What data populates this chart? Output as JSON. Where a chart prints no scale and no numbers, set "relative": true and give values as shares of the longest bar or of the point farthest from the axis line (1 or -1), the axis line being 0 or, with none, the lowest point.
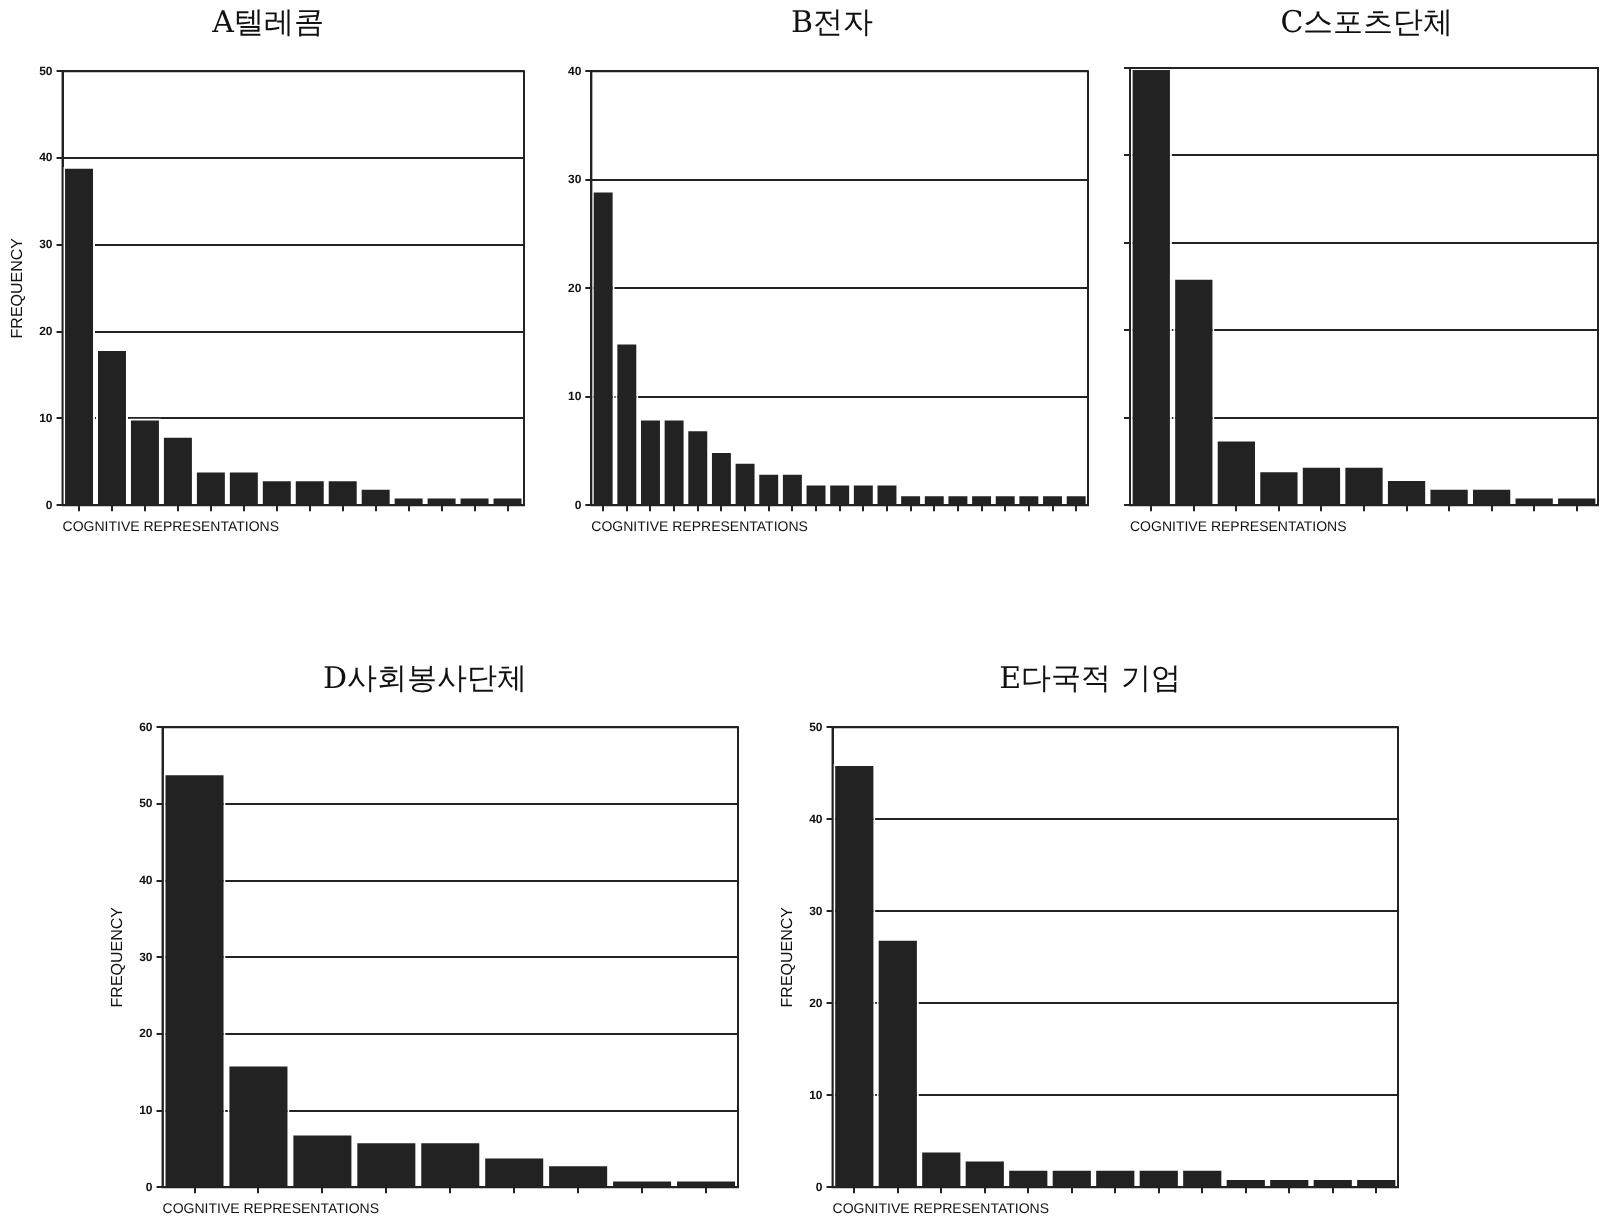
{
  "chart_data": [
    {
      "type": "bar",
      "title": "A텔레콤",
      "xlabel": "COGNITIVE REPRESENTATIONS",
      "ylabel": "FREQUENCY",
      "categories": [
        null,
        null,
        null,
        null,
        null,
        null,
        null,
        null,
        null,
        null,
        null,
        null,
        null,
        null
      ],
      "values": [
        39,
        18,
        10,
        8,
        4,
        4,
        3,
        3,
        3,
        2,
        1,
        1,
        1,
        1
      ],
      "color": "#222222",
      "ylim": [
        0,
        50
      ],
      "yticks": [
        0,
        10,
        20,
        30,
        40,
        50
      ],
      "grid": "y",
      "tick_labels": "y"
    },
    {
      "type": "bar",
      "title": "B전자",
      "xlabel": "COGNITIVE REPRESENTATIONS",
      "categories": [
        null,
        null,
        null,
        null,
        null,
        null,
        null,
        null,
        null,
        null,
        null,
        null,
        null,
        null,
        null,
        null,
        null,
        null,
        null,
        null,
        null
      ],
      "values": [
        29,
        15,
        8,
        8,
        7,
        5,
        4,
        3,
        3,
        2,
        2,
        2,
        2,
        1,
        1,
        1,
        1,
        1,
        1,
        1,
        1
      ],
      "color": "#222222",
      "ylim": [
        0,
        40
      ],
      "yticks": [
        0,
        10,
        20,
        30,
        40
      ],
      "grid": "y",
      "tick_labels": "y"
    },
    {
      "type": "bar",
      "title": "C스포츠단체",
      "xlabel": "COGNITIVE REPRESENTATIONS",
      "relative": true,
      "categories": [
        null,
        null,
        null,
        null,
        null,
        null,
        null,
        null,
        null,
        null,
        null
      ],
      "values": [
        1,
        0.52,
        0.15,
        0.08,
        0.09,
        0.09,
        0.06,
        0.04,
        0.04,
        0.02,
        0.02
      ],
      "color": "#222222",
      "grid": "y",
      "tick_labels": false
    },
    {
      "type": "bar",
      "title": "D사회봉사단체",
      "xlabel": "COGNITIVE REPRESENTATIONS",
      "ylabel": "FREQUENCY",
      "categories": [
        null,
        null,
        null,
        null,
        null,
        null,
        null,
        null,
        null
      ],
      "values": [
        54,
        16,
        7,
        6,
        6,
        4,
        3,
        1,
        1
      ],
      "color": "#222222",
      "ylim": [
        0,
        60
      ],
      "yticks": [
        0,
        10,
        20,
        30,
        40,
        50,
        60
      ],
      "grid": "y",
      "tick_labels": "y"
    },
    {
      "type": "bar",
      "title": "E다국적 기업",
      "xlabel": "COGNITIVE REPRESENTATIONS",
      "ylabel": "FREQUENCY",
      "categories": [
        null,
        null,
        null,
        null,
        null,
        null,
        null,
        null,
        null,
        null,
        null,
        null,
        null
      ],
      "values": [
        46,
        27,
        4,
        3,
        2,
        2,
        2,
        2,
        2,
        1,
        1,
        1,
        1
      ],
      "color": "#222222",
      "ylim": [
        0,
        50
      ],
      "yticks": [
        0,
        10,
        20,
        30,
        40,
        50
      ],
      "grid": "y",
      "tick_labels": "y"
    }
  ]
}
